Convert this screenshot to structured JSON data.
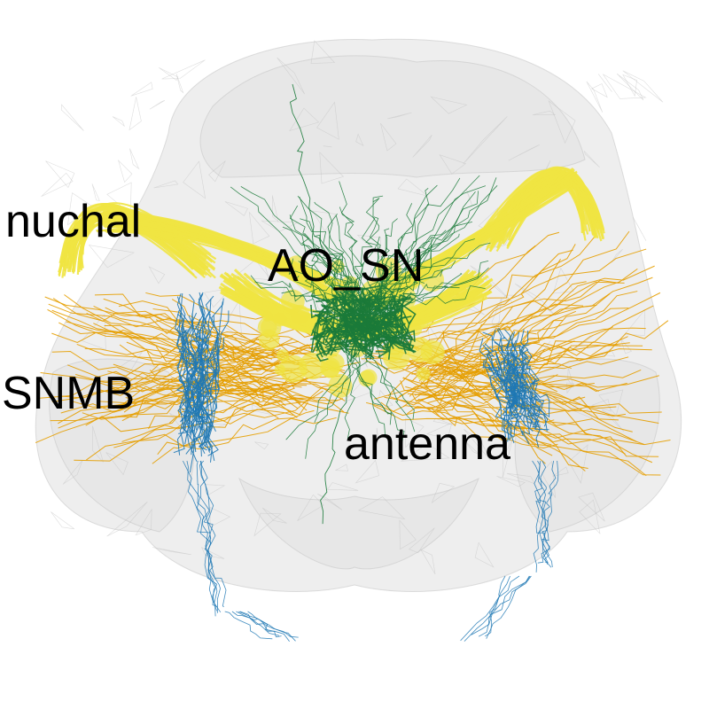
{
  "labels": {
    "nuchal": "nuchal",
    "ao_sn": "AO_SN",
    "snmb": "SNMB",
    "antenna": "antenna"
  },
  "colors": {
    "background": "#ffffff",
    "brain_mesh": "#d9d9d9",
    "nuchal": "#f0e442",
    "ao_sn": "#1b7a3a",
    "snmb": "#1f78b4",
    "antenna": "#e69f00",
    "label_text": "#000000"
  }
}
